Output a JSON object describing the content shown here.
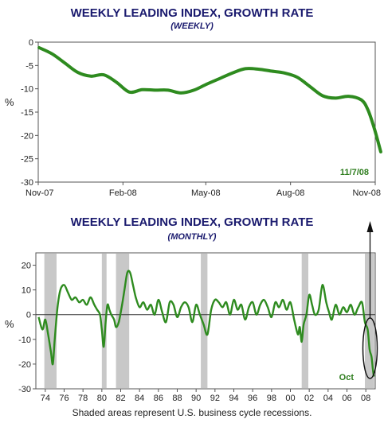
{
  "footnote": "Shaded areas represent U.S. business cycle recessions.",
  "colors": {
    "line": "#2e8b1f",
    "title": "#1a1a6e",
    "shade": "#c8c8c8"
  },
  "chart_data": [
    {
      "type": "line",
      "title": "WEEKLY LEADING INDEX, GROWTH RATE",
      "subtitle": "(WEEKLY)",
      "ylabel": "%",
      "ylim": [
        -30,
        0
      ],
      "yticks": [
        0,
        -5,
        -10,
        -15,
        -20,
        -25,
        -30
      ],
      "xticks": [
        "Nov-07",
        "Feb-08",
        "May-08",
        "Aug-08",
        "Nov-08"
      ],
      "annotation": "11/7/08",
      "series": [
        {
          "x": [
            "2007-11-02",
            "2007-11-16",
            "2007-11-30",
            "2007-12-14",
            "2007-12-28",
            "2008-01-11",
            "2008-01-25",
            "2008-02-08",
            "2008-02-22",
            "2008-03-07",
            "2008-03-21",
            "2008-04-04",
            "2008-04-18",
            "2008-05-02",
            "2008-05-16",
            "2008-05-30",
            "2008-06-13",
            "2008-06-27",
            "2008-07-11",
            "2008-07-25",
            "2008-08-08",
            "2008-08-22",
            "2008-09-05",
            "2008-09-19",
            "2008-10-03",
            "2008-10-17",
            "2008-10-24",
            "2008-10-31",
            "2008-11-07"
          ],
          "values": [
            -1.2,
            -2.5,
            -4.5,
            -6.5,
            -7.3,
            -7.0,
            -8.6,
            -10.7,
            -10.2,
            -10.3,
            -10.3,
            -10.9,
            -10.3,
            -9.0,
            -7.8,
            -6.6,
            -5.7,
            -5.8,
            -6.2,
            -6.6,
            -7.5,
            -9.5,
            -11.5,
            -12.0,
            -11.6,
            -12.4,
            -14.5,
            -18.5,
            -23.5
          ]
        }
      ]
    },
    {
      "type": "line",
      "title": "WEEKLY LEADING INDEX, GROWTH RATE",
      "subtitle": "(MONTHLY)",
      "ylabel": "%",
      "ylim": [
        -30,
        25
      ],
      "yticks": [
        20,
        10,
        0,
        -10,
        -20,
        -30
      ],
      "xticks": [
        "74",
        "76",
        "78",
        "80",
        "82",
        "84",
        "86",
        "88",
        "90",
        "92",
        "94",
        "96",
        "98",
        "00",
        "02",
        "04",
        "06",
        "08"
      ],
      "annotation": "Oct",
      "recessions": [
        [
          1973.9,
          1975.2
        ],
        [
          1980.0,
          1980.5
        ],
        [
          1981.5,
          1982.9
        ],
        [
          1990.5,
          1991.2
        ],
        [
          2001.2,
          2001.9
        ],
        [
          2007.9,
          2008.9
        ]
      ],
      "series": [
        {
          "x": [
            1973.3,
            1973.7,
            1974.0,
            1974.3,
            1974.6,
            1974.8,
            1975.0,
            1975.3,
            1975.6,
            1976.0,
            1976.4,
            1976.8,
            1977.2,
            1977.6,
            1978.0,
            1978.4,
            1978.8,
            1979.2,
            1979.5,
            1979.8,
            1980.0,
            1980.2,
            1980.4,
            1980.6,
            1980.8,
            1981.0,
            1981.3,
            1981.5,
            1981.8,
            1982.1,
            1982.4,
            1982.7,
            1983.0,
            1983.3,
            1983.6,
            1984.0,
            1984.4,
            1984.8,
            1985.2,
            1985.6,
            1986.0,
            1986.4,
            1986.8,
            1987.2,
            1987.6,
            1988.0,
            1988.4,
            1988.8,
            1989.2,
            1989.6,
            1990.0,
            1990.4,
            1990.8,
            1991.2,
            1991.6,
            1992.0,
            1992.4,
            1992.8,
            1993.2,
            1993.6,
            1994.0,
            1994.4,
            1994.8,
            1995.2,
            1995.6,
            1996.0,
            1996.4,
            1996.8,
            1997.2,
            1997.6,
            1998.0,
            1998.4,
            1998.8,
            1999.2,
            1999.6,
            2000.0,
            2000.4,
            2000.8,
            2001.0,
            2001.2,
            2001.4,
            2001.7,
            2002.0,
            2002.3,
            2002.6,
            2003.0,
            2003.4,
            2003.8,
            2004.1,
            2004.4,
            2004.8,
            2005.2,
            2005.6,
            2006.0,
            2006.4,
            2006.8,
            2007.2,
            2007.6,
            2007.9,
            2008.2,
            2008.4,
            2008.6,
            2008.75,
            2008.85
          ],
          "values": [
            -1,
            -6,
            -2,
            -8,
            -15,
            -20,
            -10,
            3,
            10,
            12,
            9,
            6,
            7,
            5,
            6,
            4,
            7,
            4,
            2,
            0,
            -6,
            -13,
            -3,
            4,
            2,
            0,
            -2,
            -5,
            -3,
            3,
            10,
            17,
            17,
            12,
            7,
            3,
            5,
            2,
            4,
            0,
            6,
            1,
            -3,
            5,
            4,
            -1,
            3,
            5,
            3,
            -3,
            4,
            0,
            -4,
            -8,
            2,
            6,
            5,
            3,
            5,
            0,
            6,
            2,
            4,
            -2,
            3,
            5,
            0,
            4,
            6,
            3,
            -1,
            5,
            3,
            6,
            2,
            5,
            -2,
            -8,
            -5,
            -11,
            -4,
            0,
            8,
            4,
            0,
            2,
            12,
            5,
            1,
            -2,
            4,
            0,
            3,
            1,
            4,
            0,
            3,
            5,
            -3,
            -6,
            -14,
            -17,
            -22,
            -25
          ]
        }
      ]
    }
  ]
}
